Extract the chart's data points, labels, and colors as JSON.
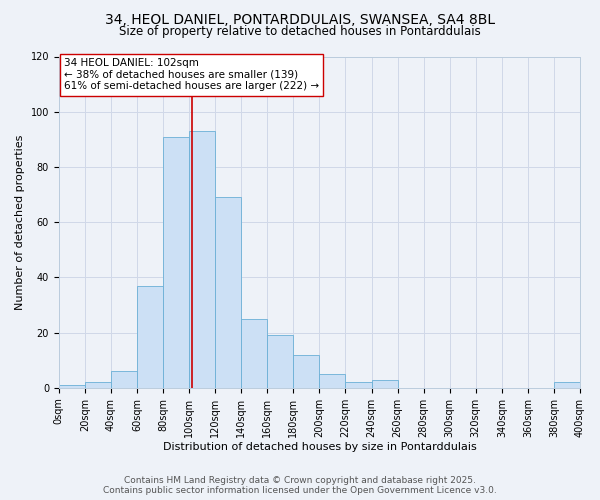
{
  "title": "34, HEOL DANIEL, PONTARDDULAIS, SWANSEA, SA4 8BL",
  "subtitle": "Size of property relative to detached houses in Pontarddulais",
  "xlabel": "Distribution of detached houses by size in Pontarddulais",
  "ylabel": "Number of detached properties",
  "bar_left_edges": [
    0,
    20,
    40,
    60,
    80,
    100,
    120,
    140,
    160,
    180,
    200,
    220,
    240,
    260,
    280,
    300,
    320,
    340,
    360,
    380
  ],
  "bar_heights": [
    1,
    2,
    6,
    37,
    91,
    93,
    69,
    25,
    19,
    12,
    5,
    2,
    3,
    0,
    0,
    0,
    0,
    0,
    0,
    2
  ],
  "bin_width": 20,
  "bar_facecolor": "#cce0f5",
  "bar_edgecolor": "#6aafd6",
  "vline_x": 102,
  "vline_color": "#cc0000",
  "annotation_text": "34 HEOL DANIEL: 102sqm\n← 38% of detached houses are smaller (139)\n61% of semi-detached houses are larger (222) →",
  "annotation_box_facecolor": "#ffffff",
  "annotation_box_edgecolor": "#cc0000",
  "ylim": [
    0,
    120
  ],
  "xlim": [
    0,
    400
  ],
  "xtick_positions": [
    0,
    20,
    40,
    60,
    80,
    100,
    120,
    140,
    160,
    180,
    200,
    220,
    240,
    260,
    280,
    300,
    320,
    340,
    360,
    380,
    400
  ],
  "xtick_labels": [
    "0sqm",
    "20sqm",
    "40sqm",
    "60sqm",
    "80sqm",
    "100sqm",
    "120sqm",
    "140sqm",
    "160sqm",
    "180sqm",
    "200sqm",
    "220sqm",
    "240sqm",
    "260sqm",
    "280sqm",
    "300sqm",
    "320sqm",
    "340sqm",
    "360sqm",
    "380sqm",
    "400sqm"
  ],
  "ytick_positions": [
    0,
    20,
    40,
    60,
    80,
    100,
    120
  ],
  "grid_color": "#d0d8e8",
  "background_color": "#eef2f8",
  "footer_line1": "Contains HM Land Registry data © Crown copyright and database right 2025.",
  "footer_line2": "Contains public sector information licensed under the Open Government Licence v3.0.",
  "title_fontsize": 10,
  "subtitle_fontsize": 8.5,
  "axis_label_fontsize": 8,
  "tick_fontsize": 7,
  "annotation_fontsize": 7.5,
  "footer_fontsize": 6.5
}
